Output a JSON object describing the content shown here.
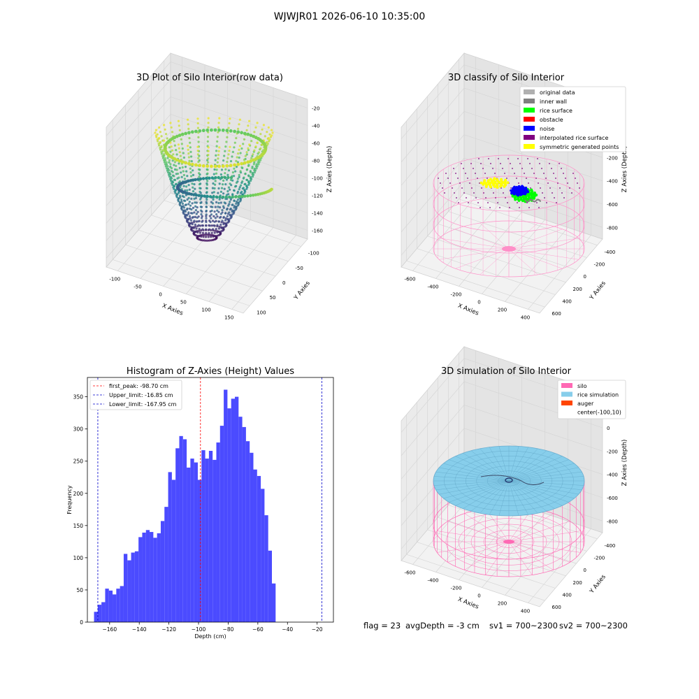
{
  "suptitle": "WJWJR01 2026-06-10 10:35:00",
  "panels": {
    "raw": {
      "title": "3D Plot of Silo Interior(row data)",
      "xlabel": "X Axies",
      "ylabel": "Y Axies",
      "zlabel": "Z Axies (Depth)",
      "xticks": [
        "-100",
        "-50",
        "0",
        "50",
        "100",
        "150"
      ],
      "yticks": [
        "100",
        "50",
        "0",
        "-50",
        "-100"
      ],
      "zticks": [
        "-20",
        "-40",
        "-60",
        "-80",
        "-100",
        "-120",
        "-140",
        "-160"
      ]
    },
    "classify": {
      "title": "3D classify of Silo Interior",
      "xlabel": "X Axies",
      "ylabel": "Y Axies",
      "zlabel": "Z Axies (Depth)",
      "xticks": [
        "-600",
        "-400",
        "-200",
        "0",
        "200",
        "400"
      ],
      "yticks": [
        "600",
        "400",
        "200",
        "0",
        "-200",
        "-400"
      ],
      "zticks": [
        "200",
        "0",
        "-200",
        "-400",
        "-600",
        "-800"
      ],
      "legend": [
        {
          "label": "original data",
          "color": "#b0b0b0"
        },
        {
          "label": "inner wall",
          "color": "#808080"
        },
        {
          "label": "rice surface",
          "color": "#00ff00"
        },
        {
          "label": "obstacle",
          "color": "#ff0000"
        },
        {
          "label": "noise",
          "color": "#0000ff"
        },
        {
          "label": "interpolated rice surface",
          "color": "#800080"
        },
        {
          "label": "symmetric generated points",
          "color": "#ffff00"
        }
      ]
    },
    "simulation": {
      "title": "3D simulation of Silo Interior",
      "xlabel": "X Axies",
      "ylabel": "Y Axies",
      "zlabel": "Z Axies (Depth)",
      "xticks": [
        "-600",
        "-400",
        "-200",
        "0",
        "200",
        "400"
      ],
      "yticks": [
        "600",
        "400",
        "200",
        "0",
        "-200",
        "-400"
      ],
      "zticks": [
        "200",
        "0",
        "-200",
        "-400",
        "-600",
        "-800"
      ],
      "legend": [
        {
          "label": "silo",
          "color": "#ff69b4"
        },
        {
          "label": "rice simulation",
          "color": "#87ceeb"
        },
        {
          "label": "auger",
          "color": "#ff4500"
        },
        {
          "label": "center(-100,10)",
          "color": ""
        }
      ]
    }
  },
  "chart_data": {
    "type": "bar",
    "title": "Histogram of Z-Axies (Height) Values",
    "xlabel": "Depth (cm)",
    "ylabel": "Frequency",
    "xlim": [
      -175,
      -9
    ],
    "ylim": [
      0,
      380
    ],
    "xticks": [
      -160,
      -140,
      -120,
      -100,
      -80,
      -60,
      -40,
      -20
    ],
    "yticks": [
      0,
      50,
      100,
      150,
      200,
      250,
      300,
      350
    ],
    "bin_start": -170.5,
    "bin_width": 2.5,
    "values": [
      16,
      27,
      31,
      52,
      49,
      43,
      52,
      56,
      106,
      96,
      108,
      110,
      132,
      139,
      143,
      140,
      131,
      138,
      157,
      179,
      233,
      221,
      270,
      289,
      284,
      240,
      254,
      248,
      221,
      267,
      254,
      266,
      252,
      279,
      305,
      361,
      332,
      347,
      350,
      319,
      303,
      281,
      263,
      237,
      227,
      207,
      166,
      111,
      60
    ],
    "vlines": [
      {
        "label": "first_peak: -98.70 cm",
        "x": -98.7,
        "color": "#ff0000"
      },
      {
        "label": "Upper_limit: -16.85 cm",
        "x": -16.85,
        "color": "#0000cc"
      },
      {
        "label": "Lower_limit: -167.95 cm",
        "x": -167.95,
        "color": "#0000cc"
      }
    ],
    "bar_color": "#4b4bff",
    "legend_position": "upper left",
    "grid": false
  },
  "status": {
    "flag": "flag = 23",
    "avg_depth": "avgDepth = -3 cm",
    "sv1": "sv1 = 700~2300",
    "sv2": "sv2 = 700~2300"
  }
}
